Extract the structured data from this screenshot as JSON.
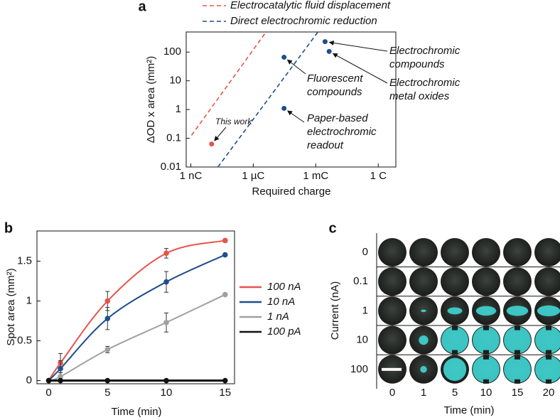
{
  "chart_data": [
    {
      "panel": "a",
      "type": "scatter",
      "xlabel": "Required charge",
      "ylabel": "ΔOD x area (mm²)",
      "xscale": "log",
      "yscale": "log",
      "xlim": [
        6e-10,
        7
      ],
      "ylim": [
        0.01,
        500
      ],
      "xticks": [
        {
          "value": 1e-09,
          "label": "1 nC"
        },
        {
          "value": 1e-06,
          "label": "1 µC"
        },
        {
          "value": 0.001,
          "label": "1 mC"
        },
        {
          "value": 1,
          "label": "1 C"
        }
      ],
      "yticks": [
        0.01,
        0.1,
        1,
        10,
        100
      ],
      "series": [
        {
          "name": "Electrocatalytic fluid displacement",
          "color": "#e8534a",
          "style": "dashed",
          "x": [
            1.08e-09,
            4.1e-06
          ],
          "y": [
            0.126,
            500
          ]
        },
        {
          "name": "Direct electrochromic reduction",
          "color": "#1f4e8c",
          "style": "dashed",
          "x": [
            2e-08,
            0.00127
          ],
          "y": [
            0.01,
            500
          ]
        }
      ],
      "points": [
        {
          "annotation": [
            "This work"
          ],
          "x": 1e-08,
          "y": 0.063,
          "color": "#e8534a"
        },
        {
          "annotation": [
            "Fluorescent",
            "compounds"
          ],
          "x": 3e-05,
          "y": 66,
          "color": "#1f4e8c"
        },
        {
          "annotation": [
            "Paper-based",
            "electrochromic",
            "readout"
          ],
          "x": 3e-05,
          "y": 1.1,
          "color": "#1f4e8c"
        },
        {
          "annotation": [
            "Electrochromic",
            "compounds"
          ],
          "x": 0.0028,
          "y": 230,
          "color": "#1f4e8c"
        },
        {
          "annotation": [
            "Electrochromic",
            "metal oxides"
          ],
          "x": 0.0044,
          "y": 105,
          "color": "#1f4e8c"
        }
      ]
    },
    {
      "panel": "b",
      "type": "line",
      "xlabel": "Time (min)",
      "ylabel": "Spot area (mm²)",
      "xlim": [
        -1,
        15.8
      ],
      "ylim": [
        -0.04,
        1.88
      ],
      "xticks": [
        0,
        5,
        10,
        15
      ],
      "yticks": [
        0,
        0.5,
        1,
        1.5
      ],
      "x": [
        0,
        1,
        5,
        10,
        15
      ],
      "series": [
        {
          "name": "100 nA",
          "color": "#e8534a",
          "values": [
            0,
            0.22,
            1.0,
            1.6,
            1.76
          ],
          "errors": [
            0,
            0.12,
            0.12,
            0.06,
            0.02
          ]
        },
        {
          "name": "10 nA",
          "color": "#1f4e8c",
          "values": [
            0,
            0.15,
            0.78,
            1.24,
            1.58
          ],
          "errors": [
            0,
            0.1,
            0.14,
            0.13,
            0
          ]
        },
        {
          "name": "1 nA",
          "color": "#a0a0a0",
          "values": [
            0,
            0.05,
            0.39,
            0.73,
            1.08
          ],
          "errors": [
            0,
            0.05,
            0.04,
            0.12,
            0
          ]
        },
        {
          "name": "100 pA",
          "color": "#111111",
          "values": [
            0,
            0,
            0,
            0,
            0
          ],
          "errors": [
            0,
            0,
            0,
            0,
            0
          ]
        }
      ]
    },
    {
      "panel": "c",
      "type": "image-grid",
      "xlabel": "Time (min)",
      "ylabel": "Current (nA)",
      "columns": [
        "0",
        "1",
        "5",
        "10",
        "15",
        "20"
      ],
      "rows": [
        "0",
        "0.1",
        "1",
        "10",
        "100"
      ]
    }
  ]
}
